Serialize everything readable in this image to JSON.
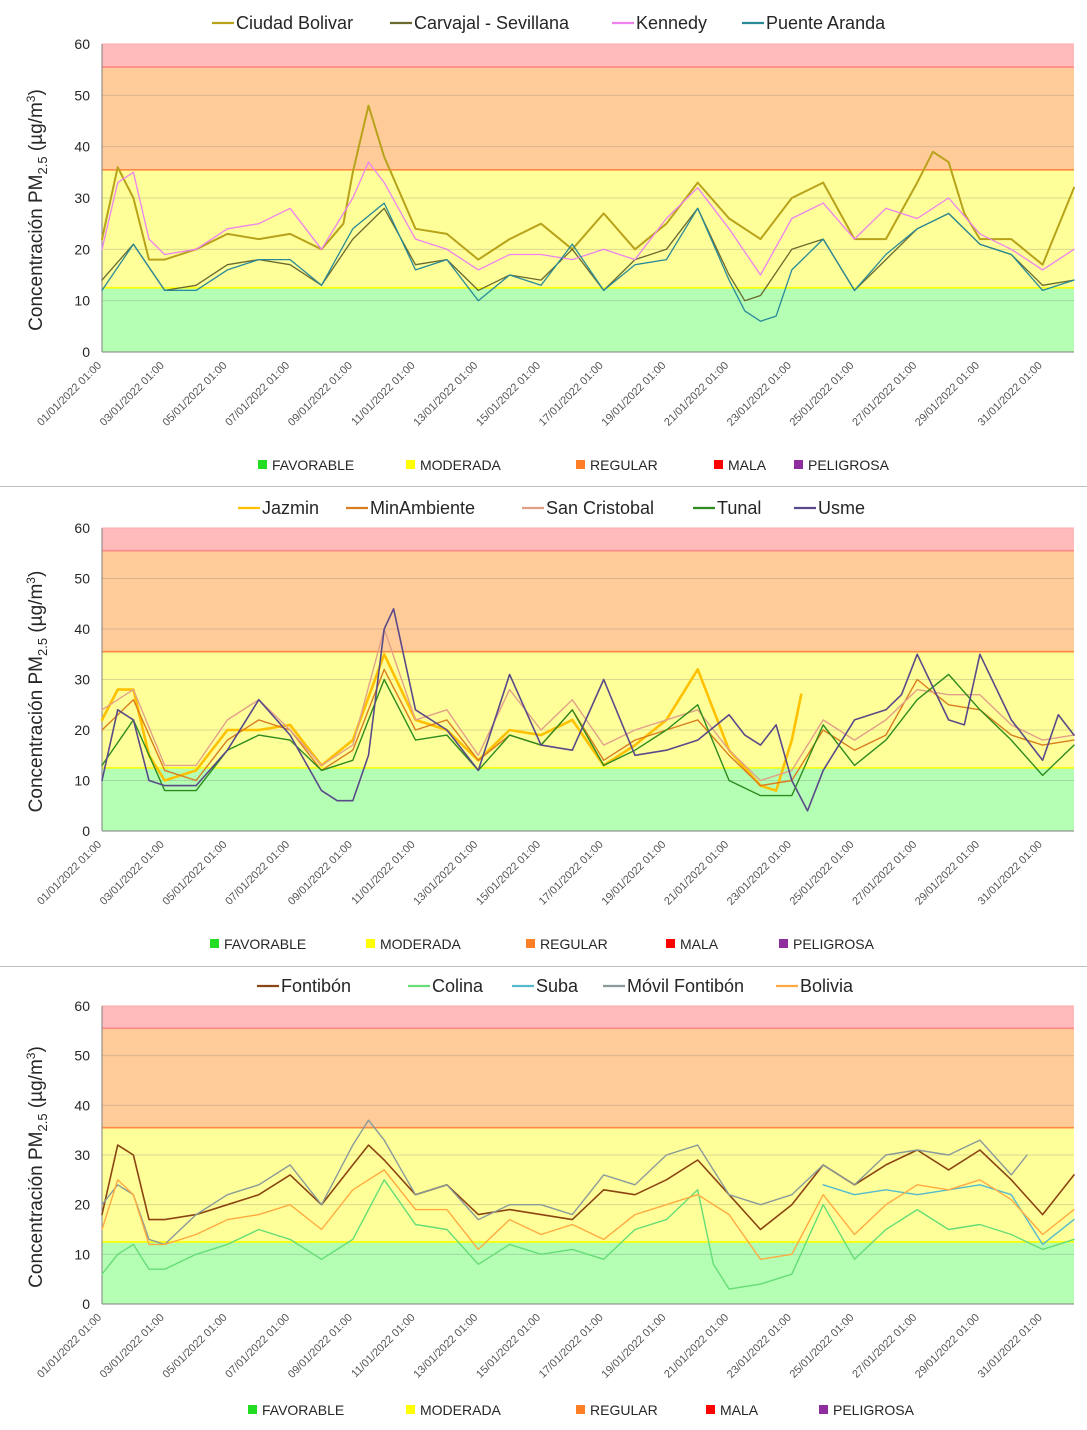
{
  "ylabel": "Concentración PM",
  "ylabel_sub": "2.5",
  "ylabel_unit": " (µg/m",
  "ylabel_sup": "3",
  "ylabel_end": ")",
  "categories": [
    "FAVORABLE",
    "MODERADA",
    "REGULAR",
    "MALA",
    "PELIGROSA"
  ],
  "category_colors": [
    "#22dd22",
    "#ffff00",
    "#ff7f27",
    "#ff0000",
    "#8e2e9e"
  ],
  "bands": [
    {
      "name": "FAVORABLE",
      "from": 0,
      "to": 12.5,
      "fill": "#b4ffb4",
      "line": "#44dd44"
    },
    {
      "name": "MODERADA",
      "from": 12.5,
      "to": 35.5,
      "fill": "#ffff99",
      "line": "#ffff00"
    },
    {
      "name": "REGULAR",
      "from": 35.5,
      "to": 55.5,
      "fill": "#ffcc99",
      "line": "#ff8844"
    },
    {
      "name": "MALA",
      "from": 55.5,
      "to": 60,
      "fill": "#ffbbbb",
      "line": "#ff8888"
    }
  ],
  "x_ticks": [
    "01/01/2022 01:00",
    "03/01/2022 01:00",
    "05/01/2022 01:00",
    "07/01/2022 01:00",
    "09/01/2022 01:00",
    "11/01/2022 01:00",
    "13/01/2022 01:00",
    "15/01/2022 01:00",
    "17/01/2022 01:00",
    "19/01/2022 01:00",
    "21/01/2022 01:00",
    "23/01/2022 01:00",
    "25/01/2022 01:00",
    "27/01/2022 01:00",
    "29/01/2022 01:00",
    "31/01/2022 01:00"
  ],
  "chart_data": [
    {
      "type": "line",
      "ylim": [
        0,
        60
      ],
      "y_ticks": [
        0,
        10,
        20,
        30,
        40,
        50,
        60
      ],
      "x_day_range": [
        1,
        32
      ],
      "series": [
        {
          "name": "Ciudad Bolivar",
          "color": "#b8a21a",
          "width": 2.0,
          "x": [
            1,
            1.5,
            2,
            2.5,
            3,
            4,
            5,
            6,
            7,
            8,
            8.7,
            9,
            9.5,
            10,
            11,
            12,
            13,
            14,
            15,
            16,
            17,
            18,
            19,
            20,
            21,
            22,
            23,
            24,
            25,
            26,
            27,
            27.5,
            28,
            28.5,
            29,
            30,
            31,
            32
          ],
          "y": [
            22,
            36,
            30,
            18,
            18,
            20,
            23,
            22,
            23,
            20,
            25,
            35,
            48,
            38,
            24,
            23,
            18,
            22,
            25,
            20,
            27,
            20,
            25,
            33,
            26,
            22,
            30,
            33,
            22,
            22,
            33,
            39,
            37,
            27,
            22,
            22,
            17,
            32
          ]
        },
        {
          "name": "Carvajal - Sevillana",
          "color": "#6a6a30",
          "width": 1.3,
          "x": [
            1,
            2,
            3,
            4,
            5,
            6,
            7,
            8,
            9,
            10,
            11,
            12,
            13,
            14,
            15,
            16,
            17,
            18,
            19,
            20,
            21,
            21.5,
            22,
            23,
            24,
            25,
            26,
            27,
            28,
            29,
            30,
            31,
            32
          ],
          "y": [
            14,
            21,
            12,
            13,
            17,
            18,
            17,
            13,
            22,
            28,
            17,
            18,
            12,
            15,
            14,
            20,
            12,
            18,
            20,
            28,
            15,
            10,
            11,
            20,
            22,
            12,
            18,
            24,
            27,
            21,
            19,
            13,
            14
          ]
        },
        {
          "name": "Kennedy",
          "color": "#ee82ee",
          "width": 1.3,
          "x": [
            1,
            1.5,
            2,
            2.5,
            3,
            4,
            5,
            6,
            7,
            8,
            9,
            9.5,
            10,
            11,
            12,
            13,
            14,
            15,
            16,
            17,
            18,
            19,
            20,
            21,
            22,
            23,
            24,
            25,
            26,
            27,
            28,
            29,
            30,
            31,
            32
          ],
          "y": [
            20,
            33,
            35,
            22,
            19,
            20,
            24,
            25,
            28,
            20,
            30,
            37,
            33,
            22,
            20,
            16,
            19,
            19,
            18,
            20,
            18,
            26,
            32,
            24,
            15,
            26,
            29,
            22,
            28,
            26,
            30,
            23,
            20,
            16,
            20
          ]
        },
        {
          "name": "Puente Aranda",
          "color": "#2a8a9a",
          "width": 1.3,
          "x": [
            1,
            2,
            3,
            4,
            5,
            6,
            7,
            8,
            9,
            10,
            11,
            12,
            13,
            14,
            15,
            16,
            17,
            18,
            19,
            20,
            21,
            21.5,
            22,
            22.5,
            23,
            24,
            25,
            26,
            27,
            28,
            29,
            30,
            31,
            32
          ],
          "y": [
            12,
            21,
            12,
            12,
            16,
            18,
            18,
            13,
            24,
            29,
            16,
            18,
            10,
            15,
            13,
            21,
            12,
            17,
            18,
            28,
            14,
            8,
            6,
            7,
            16,
            22,
            12,
            19,
            24,
            27,
            21,
            19,
            12,
            14
          ]
        }
      ]
    },
    {
      "type": "line",
      "ylim": [
        0,
        60
      ],
      "y_ticks": [
        0,
        10,
        20,
        30,
        40,
        50,
        60
      ],
      "x_day_range": [
        1,
        32
      ],
      "series": [
        {
          "name": "Jazmin",
          "color": "#ffc000",
          "width": 2.6,
          "x": [
            1,
            1.5,
            2,
            2.5,
            3,
            4,
            5,
            6,
            7,
            8,
            9,
            10,
            11,
            12,
            13,
            14,
            15,
            16,
            17,
            18,
            19,
            20,
            21,
            22,
            22.5,
            23,
            23.3
          ],
          "y": [
            22,
            28,
            28,
            15,
            10,
            12,
            20,
            20,
            21,
            13,
            18,
            35,
            22,
            20,
            14,
            20,
            19,
            22,
            13,
            17,
            22,
            32,
            16,
            9,
            8,
            18,
            27
          ]
        },
        {
          "name": "MinAmbiente",
          "color": "#d97d20",
          "width": 1.4,
          "x": [
            1,
            2,
            3,
            4,
            5,
            6,
            7,
            8,
            9,
            10,
            11,
            12,
            13,
            14,
            15,
            16,
            17,
            18,
            19,
            20,
            21,
            22,
            23,
            24,
            25,
            26,
            27,
            28,
            29,
            30,
            31,
            32
          ],
          "y": [
            20,
            26,
            12,
            10,
            18,
            22,
            20,
            12,
            16,
            32,
            20,
            22,
            14,
            19,
            17,
            24,
            14,
            18,
            20,
            22,
            15,
            9,
            10,
            20,
            16,
            19,
            30,
            25,
            24,
            19,
            17,
            18
          ]
        },
        {
          "name": "San Cristobal",
          "color": "#e2a08a",
          "width": 1.4,
          "x": [
            1,
            2,
            3,
            4,
            5,
            6,
            7,
            8,
            9,
            10,
            11,
            12,
            13,
            14,
            15,
            16,
            17,
            18,
            19,
            20,
            21,
            22,
            23,
            24,
            25,
            26,
            27,
            28,
            29,
            30,
            31,
            32
          ],
          "y": [
            24,
            28,
            13,
            13,
            22,
            26,
            20,
            13,
            17,
            40,
            22,
            24,
            15,
            28,
            20,
            26,
            17,
            20,
            22,
            24,
            16,
            10,
            12,
            22,
            18,
            22,
            28,
            27,
            27,
            21,
            18,
            19
          ]
        },
        {
          "name": "Tunal",
          "color": "#2e8b1e",
          "width": 1.4,
          "x": [
            1,
            2,
            3,
            4,
            5,
            6,
            7,
            8,
            9,
            10,
            11,
            12,
            13,
            14,
            15,
            16,
            17,
            18,
            19,
            20,
            21,
            22,
            23,
            24,
            25,
            26,
            27,
            28,
            29,
            30,
            31,
            32
          ],
          "y": [
            13,
            22,
            8,
            8,
            16,
            19,
            18,
            12,
            14,
            30,
            18,
            19,
            12,
            19,
            17,
            24,
            13,
            16,
            20,
            25,
            10,
            7,
            7,
            21,
            13,
            18,
            26,
            31,
            24,
            18,
            11,
            17
          ]
        },
        {
          "name": "Usme",
          "color": "#5a4a8a",
          "width": 1.6,
          "x": [
            1,
            1.5,
            2,
            2.5,
            3,
            4,
            5,
            6,
            7,
            8,
            8.5,
            9,
            9.5,
            10,
            10.3,
            11,
            12,
            13,
            14,
            15,
            16,
            17,
            18,
            19,
            20,
            21,
            21.5,
            22,
            22.5,
            23,
            23.5,
            24,
            25,
            26,
            26.5,
            27,
            28,
            28.5,
            29,
            30,
            31,
            31.5,
            32
          ],
          "y": [
            10,
            24,
            22,
            10,
            9,
            9,
            16,
            26,
            19,
            8,
            6,
            6,
            15,
            40,
            44,
            24,
            20,
            12,
            31,
            17,
            16,
            30,
            15,
            16,
            18,
            23,
            19,
            17,
            21,
            10,
            4,
            12,
            22,
            24,
            27,
            35,
            22,
            21,
            35,
            22,
            14,
            23,
            19
          ]
        }
      ]
    },
    {
      "type": "line",
      "ylim": [
        0,
        60
      ],
      "y_ticks": [
        0,
        10,
        20,
        30,
        40,
        50,
        60
      ],
      "x_day_range": [
        1,
        32
      ],
      "series": [
        {
          "name": "Fontibón",
          "color": "#8b4513",
          "width": 1.6,
          "x": [
            1,
            1.5,
            2,
            2.5,
            3,
            4,
            5,
            6,
            7,
            8,
            9,
            9.5,
            10,
            11,
            12,
            13,
            14,
            15,
            16,
            17,
            18,
            19,
            20,
            21,
            22,
            23,
            24,
            25,
            26,
            27,
            28,
            29,
            30,
            31,
            32
          ],
          "y": [
            18,
            32,
            30,
            17,
            17,
            18,
            20,
            22,
            26,
            20,
            28,
            32,
            29,
            22,
            24,
            18,
            19,
            18,
            17,
            23,
            22,
            25,
            29,
            22,
            15,
            20,
            28,
            24,
            28,
            31,
            27,
            31,
            25,
            18,
            26
          ]
        },
        {
          "name": "Colina",
          "color": "#66dd77",
          "width": 1.4,
          "x": [
            1,
            1.5,
            2,
            2.5,
            3,
            4,
            5,
            6,
            7,
            8,
            9,
            10,
            11,
            12,
            13,
            14,
            15,
            16,
            17,
            18,
            19,
            20,
            20.5,
            21,
            22,
            23,
            24,
            25,
            26,
            27,
            28,
            29,
            30,
            31,
            32
          ],
          "y": [
            6,
            10,
            12,
            7,
            7,
            10,
            12,
            15,
            13,
            9,
            13,
            25,
            16,
            15,
            8,
            12,
            10,
            11,
            9,
            15,
            17,
            23,
            8,
            3,
            4,
            6,
            20,
            9,
            15,
            19,
            15,
            16,
            14,
            11,
            13
          ]
        },
        {
          "name": "Suba",
          "color": "#55bbcc",
          "width": 1.4,
          "x": [
            24,
            25,
            26,
            27,
            28,
            29,
            30,
            31,
            32
          ],
          "y": [
            24,
            22,
            23,
            22,
            23,
            24,
            22,
            12,
            17
          ]
        },
        {
          "name": "Móvil Fontibón",
          "color": "#8a9a9a",
          "width": 1.4,
          "x": [
            1,
            1.5,
            2,
            2.5,
            3,
            4,
            5,
            6,
            7,
            8,
            9,
            9.5,
            10,
            11,
            12,
            13,
            14,
            15,
            16,
            17,
            18,
            19,
            20,
            21,
            22,
            23,
            24,
            25,
            26,
            27,
            28,
            29,
            30,
            30.5
          ],
          "y": [
            20,
            24,
            22,
            13,
            12,
            18,
            22,
            24,
            28,
            20,
            32,
            37,
            33,
            22,
            24,
            17,
            20,
            20,
            18,
            26,
            24,
            30,
            32,
            22,
            20,
            22,
            28,
            24,
            30,
            31,
            30,
            33,
            26,
            30
          ]
        },
        {
          "name": "Bolivia",
          "color": "#ffaa40",
          "width": 1.4,
          "x": [
            1,
            1.5,
            2,
            2.5,
            3,
            4,
            5,
            6,
            7,
            8,
            9,
            10,
            11,
            12,
            13,
            14,
            15,
            16,
            17,
            18,
            19,
            20,
            21,
            22,
            23,
            24,
            25,
            26,
            27,
            28,
            29,
            30,
            31,
            32
          ],
          "y": [
            15,
            25,
            22,
            12,
            12,
            14,
            17,
            18,
            20,
            15,
            23,
            27,
            19,
            19,
            11,
            17,
            14,
            16,
            13,
            18,
            20,
            22,
            18,
            9,
            10,
            22,
            14,
            20,
            24,
            23,
            25,
            21,
            14,
            19
          ]
        }
      ]
    }
  ]
}
